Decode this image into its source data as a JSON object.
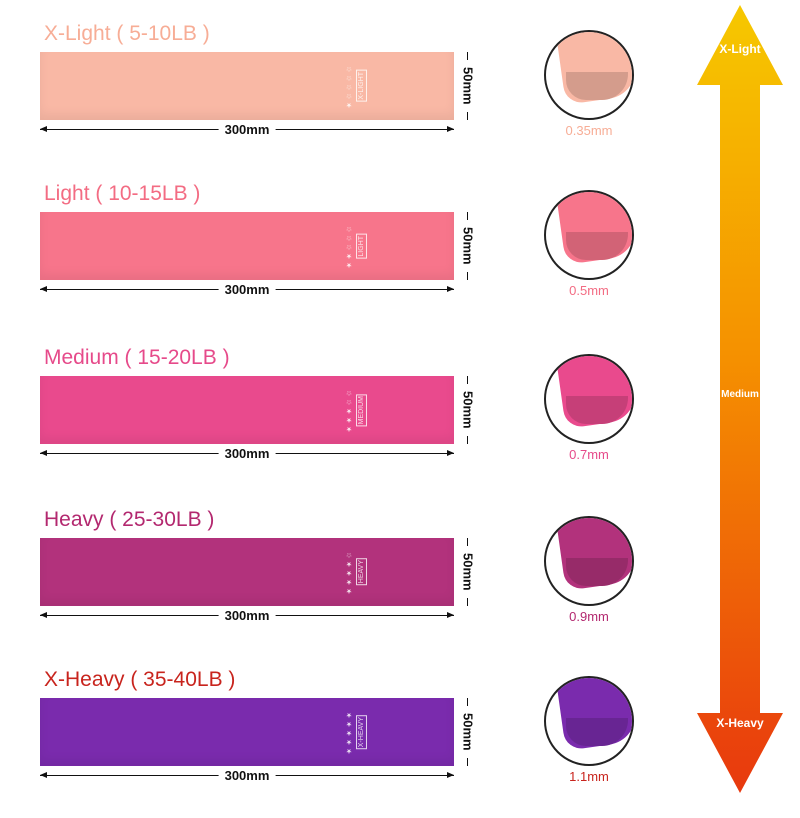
{
  "bands": [
    {
      "title": "X-Light ( 5-10LB )",
      "level": "X-LIGHT",
      "stars": "★☆☆☆☆",
      "length": "300mm",
      "width": "50mm",
      "thickness": "0.35mm",
      "color": "#f9b8a5",
      "title_color": "#f7ad96"
    },
    {
      "title": "Light ( 10-15LB )",
      "level": "LIGHT",
      "stars": "★★☆☆☆",
      "length": "300mm",
      "width": "50mm",
      "thickness": "0.5mm",
      "color": "#f7758b",
      "title_color": "#f36c83"
    },
    {
      "title": "Medium ( 15-20LB )",
      "level": "MEDIUM",
      "stars": "★★★☆☆",
      "length": "300mm",
      "width": "50mm",
      "thickness": "0.7mm",
      "color": "#e94a8d",
      "title_color": "#e64a8a"
    },
    {
      "title": "Heavy ( 25-30LB )",
      "level": "HEAVY",
      "stars": "★★★★☆",
      "length": "300mm",
      "width": "50mm",
      "thickness": "0.9mm",
      "color": "#b2327c",
      "title_color": "#b3286f"
    },
    {
      "title": "X-Heavy ( 35-40LB )",
      "level": "X-HEAVY",
      "stars": "★★★★★",
      "length": "300mm",
      "width": "50mm",
      "thickness": "1.1mm",
      "color": "#7a2bad",
      "title_color": "#c8241d"
    }
  ],
  "scale": {
    "top": "X-Light",
    "middle": "Medium",
    "bottom": "X-Heavy",
    "colors": [
      "#f6c800",
      "#f59000",
      "#e8380e"
    ]
  }
}
